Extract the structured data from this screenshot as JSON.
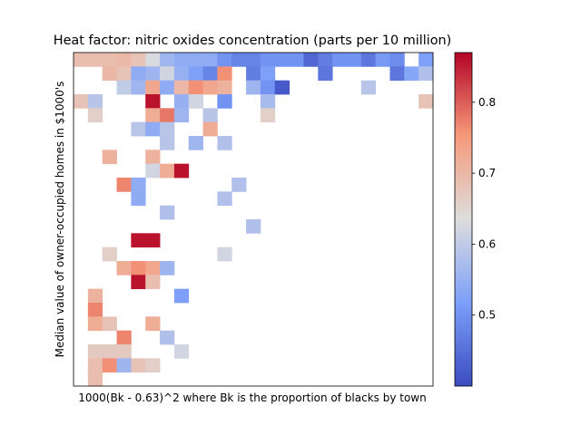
{
  "chart_data": {
    "type": "heatmap",
    "title": "Heat factor: nitric oxides concentration (parts per 10 million)",
    "xlabel": "1000(Bk - 0.63)^2 where Bk is the proportion of blacks by town",
    "ylabel": "Median value of owner-occupied homes in $1000's",
    "x_ticks_shown": false,
    "y_ticks_shown": false,
    "grid": false,
    "rows": 24,
    "cols": 25,
    "colormap": "coolwarm",
    "colorbar": {
      "min": 0.4,
      "max": 0.87,
      "ticks": [
        0.5,
        0.6,
        0.7,
        0.8
      ],
      "tick_labels": [
        "0.5",
        "0.6",
        "0.7",
        "0.8"
      ]
    },
    "cells": [
      [
        0,
        0,
        0.69
      ],
      [
        0,
        1,
        0.69
      ],
      [
        0,
        2,
        0.69
      ],
      [
        0,
        3,
        0.7
      ],
      [
        0,
        4,
        0.68
      ],
      [
        0,
        5,
        0.63
      ],
      [
        0,
        6,
        0.56
      ],
      [
        0,
        7,
        0.54
      ],
      [
        0,
        8,
        0.54
      ],
      [
        0,
        9,
        0.54
      ],
      [
        0,
        10,
        0.5
      ],
      [
        0,
        11,
        0.48
      ],
      [
        0,
        12,
        0.48
      ],
      [
        0,
        13,
        0.5
      ],
      [
        0,
        14,
        0.5
      ],
      [
        0,
        15,
        0.5
      ],
      [
        0,
        16,
        0.44
      ],
      [
        0,
        17,
        0.47
      ],
      [
        0,
        18,
        0.5
      ],
      [
        0,
        19,
        0.5
      ],
      [
        0,
        20,
        0.46
      ],
      [
        0,
        21,
        0.51
      ],
      [
        0,
        22,
        0.49
      ],
      [
        0,
        24,
        0.52
      ],
      [
        1,
        2,
        0.7
      ],
      [
        1,
        3,
        0.68
      ],
      [
        1,
        4,
        0.54
      ],
      [
        1,
        5,
        0.56
      ],
      [
        1,
        6,
        0.62
      ],
      [
        1,
        7,
        0.55
      ],
      [
        1,
        8,
        0.52
      ],
      [
        1,
        9,
        0.48
      ],
      [
        1,
        10,
        0.76
      ],
      [
        1,
        12,
        0.47
      ],
      [
        1,
        13,
        0.52
      ],
      [
        1,
        17,
        0.46
      ],
      [
        1,
        22,
        0.46
      ],
      [
        1,
        23,
        0.53
      ],
      [
        1,
        24,
        0.58
      ],
      [
        2,
        3,
        0.6
      ],
      [
        2,
        4,
        0.56
      ],
      [
        2,
        5,
        0.73
      ],
      [
        2,
        6,
        0.54
      ],
      [
        2,
        7,
        0.7
      ],
      [
        2,
        8,
        0.76
      ],
      [
        2,
        9,
        0.73
      ],
      [
        2,
        10,
        0.71
      ],
      [
        2,
        12,
        0.56
      ],
      [
        2,
        13,
        0.5
      ],
      [
        2,
        14,
        0.42
      ],
      [
        2,
        20,
        0.59
      ],
      [
        3,
        0,
        0.68
      ],
      [
        3,
        1,
        0.59
      ],
      [
        3,
        5,
        0.86
      ],
      [
        3,
        7,
        0.55
      ],
      [
        3,
        8,
        0.62
      ],
      [
        3,
        10,
        0.5
      ],
      [
        3,
        13,
        0.57
      ],
      [
        3,
        24,
        0.68
      ],
      [
        4,
        1,
        0.66
      ],
      [
        4,
        5,
        0.72
      ],
      [
        4,
        6,
        0.78
      ],
      [
        4,
        7,
        0.56
      ],
      [
        4,
        9,
        0.59
      ],
      [
        4,
        13,
        0.66
      ],
      [
        5,
        4,
        0.59
      ],
      [
        5,
        5,
        0.54
      ],
      [
        5,
        6,
        0.59
      ],
      [
        5,
        9,
        0.72
      ],
      [
        6,
        6,
        0.59
      ],
      [
        6,
        8,
        0.56
      ],
      [
        6,
        10,
        0.58
      ],
      [
        7,
        2,
        0.71
      ],
      [
        7,
        5,
        0.71
      ],
      [
        8,
        5,
        0.62
      ],
      [
        8,
        6,
        0.72
      ],
      [
        8,
        7,
        0.86
      ],
      [
        9,
        3,
        0.77
      ],
      [
        9,
        4,
        0.54
      ],
      [
        9,
        11,
        0.58
      ],
      [
        10,
        4,
        0.54
      ],
      [
        10,
        10,
        0.58
      ],
      [
        11,
        6,
        0.58
      ],
      [
        12,
        12,
        0.58
      ],
      [
        13,
        4,
        0.86
      ],
      [
        13,
        5,
        0.86
      ],
      [
        14,
        2,
        0.66
      ],
      [
        14,
        10,
        0.62
      ],
      [
        15,
        3,
        0.72
      ],
      [
        15,
        4,
        0.76
      ],
      [
        15,
        5,
        0.73
      ],
      [
        15,
        6,
        0.56
      ],
      [
        16,
        4,
        0.86
      ],
      [
        16,
        5,
        0.69
      ],
      [
        17,
        1,
        0.71
      ],
      [
        17,
        7,
        0.52
      ],
      [
        18,
        1,
        0.77
      ],
      [
        19,
        1,
        0.72
      ],
      [
        19,
        2,
        0.68
      ],
      [
        19,
        5,
        0.72
      ],
      [
        20,
        3,
        0.77
      ],
      [
        20,
        6,
        0.58
      ],
      [
        21,
        1,
        0.67
      ],
      [
        21,
        2,
        0.67
      ],
      [
        21,
        3,
        0.67
      ],
      [
        21,
        7,
        0.62
      ],
      [
        22,
        1,
        0.69
      ],
      [
        22,
        2,
        0.76
      ],
      [
        22,
        3,
        0.56
      ],
      [
        22,
        4,
        0.68
      ],
      [
        22,
        5,
        0.66
      ],
      [
        23,
        1,
        0.69
      ]
    ]
  }
}
